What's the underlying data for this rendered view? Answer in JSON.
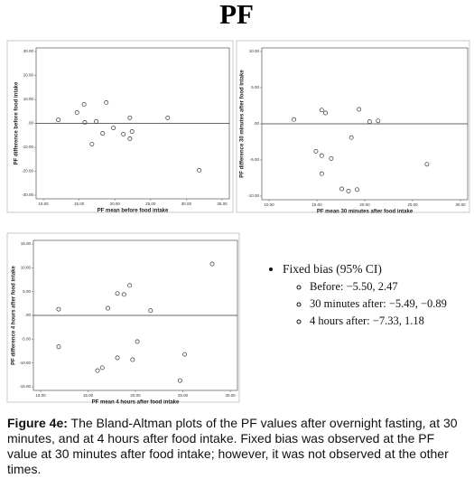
{
  "title": "PF",
  "chart_data": [
    {
      "type": "scatter",
      "x_label": "PF mean before food intake",
      "y_label": "PF difference before food intake",
      "x": [
        12.1,
        14.7,
        15.7,
        15.8,
        16.8,
        17.4,
        18.3,
        18.8,
        19.8,
        21.2,
        22.1,
        22.4,
        22.1,
        27.4,
        31.8
      ],
      "values": [
        1.5,
        4.5,
        7.9,
        0.4,
        -8.7,
        0.8,
        -4.2,
        8.7,
        -1.9,
        -4.5,
        2.3,
        -3.4,
        -6.4,
        2.3,
        -19.6
      ],
      "xlim": [
        10,
        35
      ],
      "ylim": [
        -30,
        30
      ],
      "hline": 0,
      "color": "#333333",
      "xticks": [
        {
          "value": 10,
          "label": "10.00"
        },
        {
          "value": 15,
          "label": "15.00"
        },
        {
          "value": 20,
          "label": "20.00"
        },
        {
          "value": 25,
          "label": "25.00"
        },
        {
          "value": 30,
          "label": "30.00"
        },
        {
          "value": 35,
          "label": "35.00"
        }
      ],
      "yticks": [
        {
          "value": 30,
          "label": "30.00"
        },
        {
          "value": 20,
          "label": "20.00"
        },
        {
          "value": 10,
          "label": "10.00"
        },
        {
          "value": 0,
          "label": ".00"
        },
        {
          "value": -10,
          "label": "-10.00"
        },
        {
          "value": -20,
          "label": "-20.00"
        },
        {
          "value": -30,
          "label": "-30.00"
        }
      ]
    },
    {
      "type": "scatter",
      "x_label": "PF mean 30 minutes after food intake",
      "y_label": "PF difference 30 minutes after food intake",
      "x": [
        12.6,
        15.5,
        15.9,
        14.9,
        15.5,
        16.5,
        15.5,
        17.6,
        18.3,
        18.6,
        19.2,
        19.4,
        20.5,
        21.4,
        26.5
      ],
      "values": [
        0.6,
        1.9,
        1.5,
        -3.8,
        -4.4,
        -4.8,
        -6.9,
        -9.0,
        -9.3,
        -1.9,
        -9.1,
        2.0,
        0.3,
        0.4,
        -5.6
      ],
      "xlim": [
        10,
        30
      ],
      "ylim": [
        -10,
        10
      ],
      "hline": 0,
      "color": "#333333",
      "xticks": [
        {
          "value": 10,
          "label": "10.00"
        },
        {
          "value": 15,
          "label": "15.00"
        },
        {
          "value": 20,
          "label": "20.00"
        },
        {
          "value": 25,
          "label": "25.00"
        },
        {
          "value": 30,
          "label": "30.00"
        }
      ],
      "yticks": [
        {
          "value": 10,
          "label": "10.00"
        },
        {
          "value": 5,
          "label": "5.00"
        },
        {
          "value": 0,
          "label": ".00"
        },
        {
          "value": -5,
          "label": "-5.00"
        },
        {
          "value": -10,
          "label": "-10.00"
        }
      ]
    },
    {
      "type": "scatter",
      "x_label": "PF mean 4 hours after food intake",
      "y_label": "PF difference 4 hours after food intake",
      "x": [
        11.9,
        11.9,
        16.0,
        16.5,
        17.1,
        18.1,
        18.1,
        18.8,
        19.4,
        19.7,
        20.2,
        21.6,
        24.7,
        25.2,
        28.1
      ],
      "values": [
        1.3,
        -6.6,
        -11.6,
        -11.0,
        1.5,
        4.6,
        -8.9,
        4.4,
        6.3,
        -9.3,
        -5.5,
        1.0,
        -13.7,
        -8.2,
        10.8
      ],
      "xlim": [
        10,
        30
      ],
      "ylim": [
        -15,
        15
      ],
      "hline": 0,
      "color": "#333333",
      "xticks": [
        {
          "value": 10,
          "label": "10.00"
        },
        {
          "value": 15,
          "label": "15.00"
        },
        {
          "value": 20,
          "label": "20.00"
        },
        {
          "value": 25,
          "label": "25.00"
        },
        {
          "value": 30,
          "label": "30.00"
        }
      ],
      "yticks": [
        {
          "value": 15,
          "label": "15.00"
        },
        {
          "value": 10,
          "label": "10.00"
        },
        {
          "value": 5,
          "label": "5.00"
        },
        {
          "value": 0,
          "label": ".00"
        },
        {
          "value": -5,
          "label": "-5.00"
        },
        {
          "value": -10,
          "label": "-10.00"
        },
        {
          "value": -15,
          "label": "-15.00"
        }
      ]
    }
  ],
  "bullets": {
    "heading": "Fixed bias (95% CI)",
    "items": [
      "Before: −5.50, 2.47",
      "30 minutes after: −5.49, −0.89",
      "4 hours after: −7.33, 1.18"
    ]
  },
  "caption": {
    "label": "Figure 4e:",
    "text": " The Bland-Altman plots of the PF values after overnight fasting, at 30 minutes, and at 4 hours after food intake. Fixed bias was observed at the PF value at 30 minutes after food intake; however, it was not observed at the other times."
  }
}
